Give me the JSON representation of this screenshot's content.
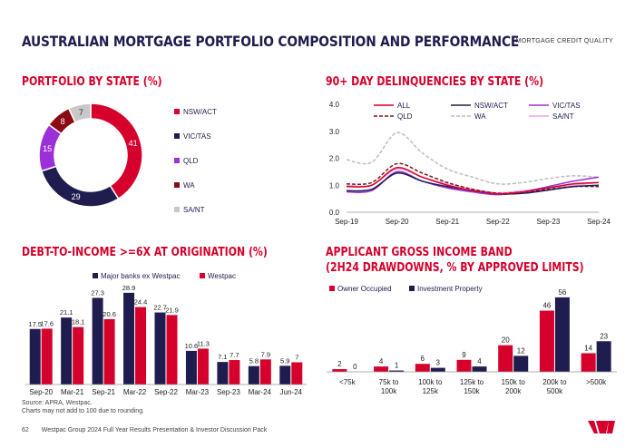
{
  "header": {
    "title": "AUSTRALIAN MORTGAGE PORTFOLIO COMPOSITION AND PERFORMANCE",
    "tagline": "MORTGAGE CREDIT QUALITY"
  },
  "footer": {
    "page": "62",
    "text": "Westpac Group 2024 Full Year Results Presentation & Investor Discussion Pack"
  },
  "footnotes": [
    "Source: APRA, Westpac.",
    "Charts may not add to 100 due to rounding."
  ],
  "colors": {
    "red": "#d5002b",
    "navy": "#1f1c4f",
    "darkred": "#8b0a14",
    "purple": "#9b30d9",
    "gray": "#c8c8c8",
    "pink": "#e8a6e0",
    "lightgray": "#bdbdbd",
    "darkbrown": "#7a1b1b"
  },
  "chart_data": [
    {
      "id": "portfolio-by-state",
      "type": "pie",
      "title": "PORTFOLIO BY STATE (%)",
      "labels": [
        "NSW/ACT",
        "VIC/TAS",
        "QLD",
        "WA",
        "SA/NT"
      ],
      "values": [
        41,
        29,
        15,
        8,
        7
      ]
    },
    {
      "id": "delinquencies",
      "type": "line",
      "title": "90+ DAY DELINQUENCIES BY STATE (%)",
      "x": [
        "Sep-19",
        "Mar-20",
        "Sep-20",
        "Mar-21",
        "Sep-21",
        "Mar-22",
        "Sep-22",
        "Mar-23",
        "Sep-23",
        "Mar-24",
        "Sep-24"
      ],
      "xticks": [
        "Sep-19",
        "Sep-20",
        "Sep-21",
        "Sep-22",
        "Sep-23",
        "Sep-24"
      ],
      "ylim": [
        0,
        4
      ],
      "yticks": [
        "0.0",
        "1.0",
        "2.0",
        "3.0",
        "4.0"
      ],
      "series": [
        {
          "name": "ALL",
          "values": [
            0.95,
            1.0,
            1.65,
            1.3,
            1.0,
            0.8,
            0.68,
            0.75,
            0.9,
            1.05,
            1.1
          ]
        },
        {
          "name": "NSW/ACT",
          "values": [
            0.8,
            0.85,
            1.45,
            1.15,
            0.95,
            0.8,
            0.68,
            0.7,
            0.82,
            0.95,
            1.0
          ]
        },
        {
          "name": "VIC/TAS",
          "values": [
            0.75,
            0.8,
            1.5,
            1.15,
            0.9,
            0.75,
            0.65,
            0.75,
            0.95,
            1.15,
            1.3
          ]
        },
        {
          "name": "QLD",
          "values": [
            1.05,
            1.1,
            1.8,
            1.45,
            1.1,
            0.85,
            0.7,
            0.75,
            0.85,
            0.95,
            0.95
          ]
        },
        {
          "name": "WA",
          "values": [
            1.95,
            1.85,
            2.95,
            2.2,
            1.6,
            1.3,
            1.05,
            1.1,
            1.25,
            1.35,
            1.3
          ]
        },
        {
          "name": "SA/NT",
          "values": [
            1.0,
            1.0,
            1.6,
            1.3,
            1.05,
            0.85,
            0.72,
            0.8,
            0.9,
            1.0,
            1.1
          ]
        }
      ]
    },
    {
      "id": "dti",
      "type": "bar",
      "title": "DEBT-TO-INCOME >=6X AT ORIGINATION (%)",
      "categories": [
        "Sep-20",
        "Mar-21",
        "Sep-21",
        "Mar-22",
        "Sep-22",
        "Mar-23",
        "Sep-23",
        "Mar-24",
        "Jun-24"
      ],
      "series": [
        {
          "name": "Major banks ex Westpac",
          "values": [
            17.5,
            21.1,
            27.3,
            28.9,
            22.7,
            10.6,
            7.1,
            5.8,
            5.9
          ]
        },
        {
          "name": "Westpac",
          "values": [
            17.6,
            18.1,
            20.6,
            24.4,
            21.9,
            11.3,
            7.7,
            7.9,
            7.0
          ]
        }
      ],
      "ylim": [
        0,
        32
      ]
    },
    {
      "id": "income-band",
      "type": "bar",
      "title": "APPLICANT GROSS INCOME BAND",
      "subtitle": "(2H24 DRAWDOWNS, % BY APPROVED LIMITS)",
      "categories": [
        "<75k",
        "75k to 100k",
        "100k to 125k",
        "125k to 150k",
        "150k to 200k",
        "200k to 500k",
        ">500k"
      ],
      "series": [
        {
          "name": "Owner Occupied",
          "values": [
            2,
            4,
            6,
            9,
            20,
            46,
            14
          ]
        },
        {
          "name": "Investment Property",
          "values": [
            0,
            1,
            3,
            4,
            12,
            56,
            23
          ]
        }
      ],
      "ylim": [
        0,
        60
      ]
    }
  ]
}
